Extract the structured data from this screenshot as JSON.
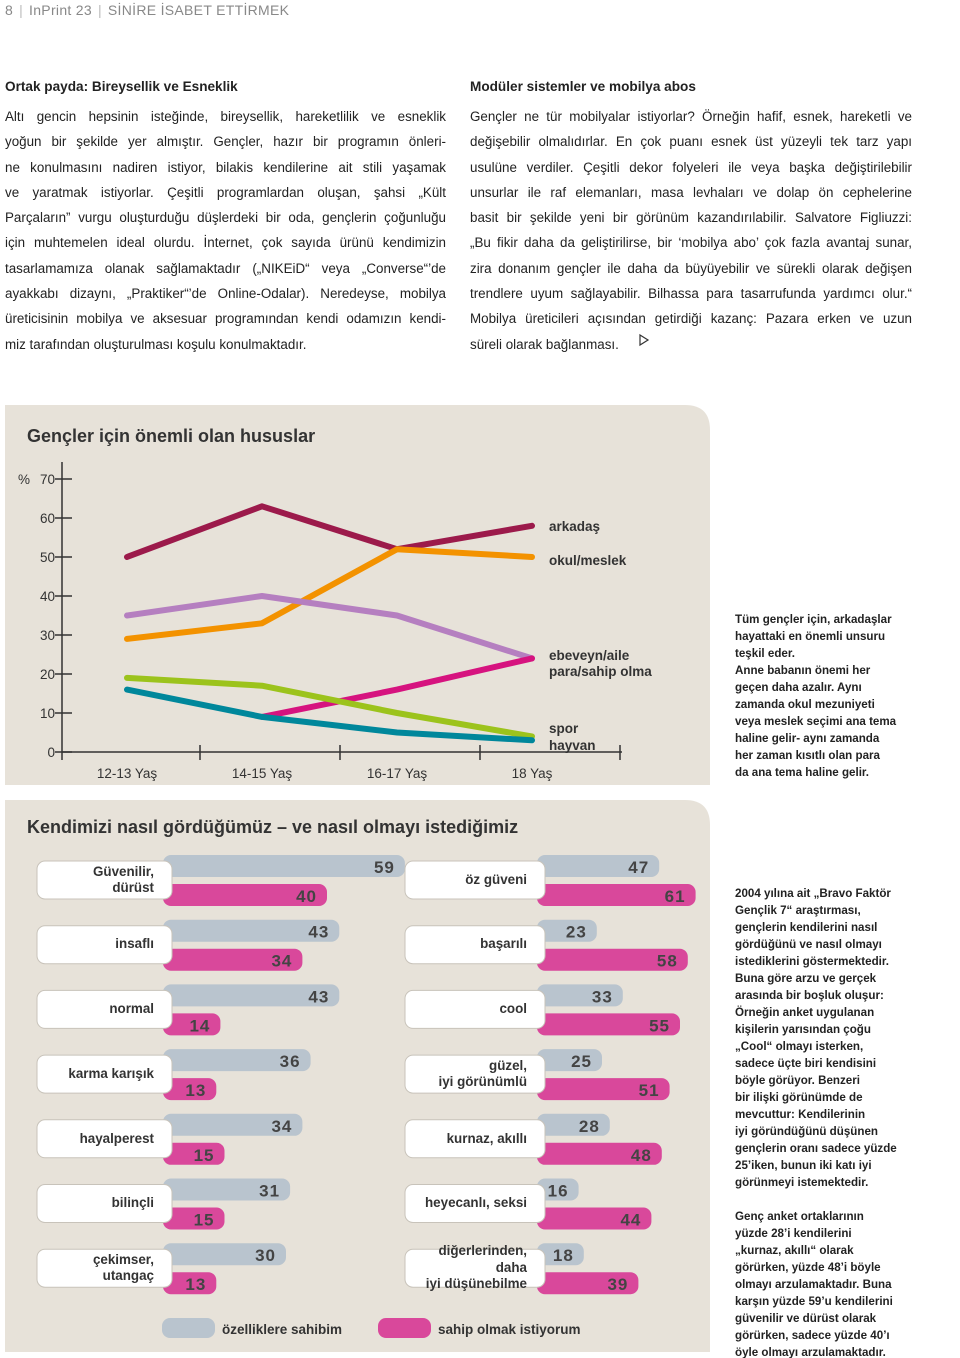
{
  "header": {
    "page_number": "8",
    "publication": "InPrint 23",
    "section": "SİNİRE İSABET ETTİRMEK"
  },
  "left_article": {
    "heading": "Ortak payda: Bireysellik ve Esneklik",
    "lines": [
      "Altı gencin hepsinin isteğinde, bireysellik, hareketlilik ve esneklik",
      "yoğun bir şekilde yer almıştır. Gençler, hazır bir programın önleri-",
      "ne konulmasını nadiren istiyor, bilakis kendilerine ait stili yaşamak",
      "ve yaratmak istiyorlar. Çeşitli programlardan oluşan, şahsi „Kült",
      "Parçaların” vurgu oluşturduğu düşlerdeki bir oda, gençlerin çoğunluğu",
      "için muhtemelen ideal olurdu. İnternet, çok sayıda ürünü kendimizin",
      "tasarlamamıza olanak sağlamaktadır („NIKEiD“ veya „Converse“’de",
      "ayakkabı dizaynı, „Praktiker“’de Online-Odalar). Neredeyse, mobilya",
      "üreticisinin mobilya ve aksesuar programından kendi odamızın kendi-",
      "miz tarafından oluşturulması koşulu konulmaktadır."
    ]
  },
  "right_article": {
    "heading": "Modüler sistemler ve mobilya abos",
    "lines": [
      "Gençler ne tür mobilyalar istiyorlar? Örneğin hafif, esnek, hareketli ve",
      "değişebilir olmalıdırlar. En çok puanı esnek üst yüzeyli tek tarz yapı",
      "usulüne verdiler. Çeşitli dekor folyeleri ile veya başka değiştirilebilir",
      "unsurlar ile raf elemanları, masa levhaları ve dolap ön cephelerine",
      "basit bir şekilde yeni bir görünüm kazandırılabilir. Salvatore Figliuzzi:",
      "„Bu fikir daha da geliştirilirse, bir ‘mobilya abo’ çok fazla avantaj sunar,",
      "zira donanım gençler ile daha da büyüyebilir ve sürekli olarak değişen",
      "trendlere uyum sağlayabilir. Bilhassa para tasarrufunda yardımcı olur.“",
      "Mobilya üreticileri açısından getirdiği kazanç: Pazara erken ve uzun",
      "süreli olarak bağlanması."
    ]
  },
  "chart_data": [
    {
      "type": "line",
      "title": "Gençler için önemli olan hususlar",
      "ylabel": "%",
      "categories": [
        "12-13 Yaş",
        "14-15 Yaş",
        "16-17 Yaş",
        "18 Yaş"
      ],
      "ylim": [
        0,
        70
      ],
      "yticks": [
        0,
        10,
        20,
        30,
        40,
        50,
        60,
        70
      ],
      "series": [
        {
          "name": "arkadaş",
          "color": "#9c1a4b",
          "values": [
            50,
            63,
            52,
            58
          ]
        },
        {
          "name": "okul/meslek",
          "color": "#f39200",
          "values": [
            29,
            33,
            52,
            50
          ]
        },
        {
          "name": "ebeveyn/aile",
          "color": "#b57fc0",
          "values": [
            35,
            40,
            35,
            24
          ]
        },
        {
          "name": "para/sahip olma",
          "color": "#d6137f",
          "values": [
            null,
            9,
            16,
            24
          ]
        },
        {
          "name": "spor",
          "color": "#9cc31c",
          "values": [
            19,
            17,
            10,
            4
          ]
        },
        {
          "name": "hayvan",
          "color": "#00879b",
          "values": [
            16,
            9,
            5,
            3
          ]
        }
      ]
    },
    {
      "type": "bar",
      "title": "Kendimizi nasıl gördüğümüz – ve nasıl olmayı istediğimiz",
      "categories": [
        "Güvenilir,\ndürüst",
        "insaflı",
        "normal",
        "karma karışık",
        "hayalperest",
        "bilinçli",
        "çekimser,\nutangaç",
        "öz güveni",
        "başarılı",
        "cool",
        "güzel,\niyi görünümlü",
        "kurnaz, akıllı",
        "heyecanlı, seksi",
        "diğerlerinden, daha\niyi düşünebilme"
      ],
      "series": [
        {
          "name": "özelliklere sahibim",
          "color": "#b9c4ce",
          "values": [
            59,
            43,
            43,
            36,
            34,
            31,
            30,
            47,
            23,
            33,
            25,
            28,
            16,
            18
          ]
        },
        {
          "name": "sahip olmak istiyorum",
          "color": "#d9489b",
          "values": [
            40,
            34,
            14,
            13,
            15,
            15,
            13,
            61,
            58,
            55,
            51,
            48,
            44,
            39
          ]
        }
      ]
    }
  ],
  "chart_note": {
    "lines": [
      "Tüm gençler için, arkadaşlar",
      "hayattaki en önemli unsuru",
      "teşkil eder.",
      "Anne babanın önemi her",
      "geçen daha azalır. Aynı",
      "zamanda okul mezuniyeti",
      "veya meslek seçimi ana tema",
      "haline gelir- aynı zamanda",
      "her zaman kısıtlı olan para",
      "da ana tema haline gelir."
    ]
  },
  "survey_note": {
    "paragraphs": [
      [
        "2004 yılına ait „Bravo Faktör",
        "Gençlik 7“ araştırması,",
        "gençlerin kendilerini nasıl",
        "gördüğünü ve nasıl olmayı",
        "istediklerini göstermektedir.",
        "Buna göre arzu ve gerçek",
        "arasında bir boşluk oluşur:",
        "Örneğin anket uygulanan",
        "kişilerin yarısından çoğu",
        "„Cool“ olmayı isterken,",
        "sadece üçte biri kendisini",
        "böyle görüyor. Benzeri",
        "bir ilişki görünümde de",
        "mevcuttur: Kendilerinin",
        "iyi göründüğünü düşünen",
        "gençlerin oranı sadece yüzde",
        "25’iken, bunun iki katı iyi",
        "görünmeyi istemektedir."
      ],
      [
        "Genç anket ortaklarının",
        "yüzde 28’i kendilerini",
        "„kurnaz, akıllı“ olarak",
        "görürken, yüzde 48’i böyle",
        "olmayı arzulamaktadır. Buna",
        "karşın yüzde 59’u kendilerini",
        "güvenilir ve dürüst olarak",
        "görürken, sadece yüzde 40’ı",
        "öyle olmayı arzulamaktadır."
      ]
    ]
  }
}
